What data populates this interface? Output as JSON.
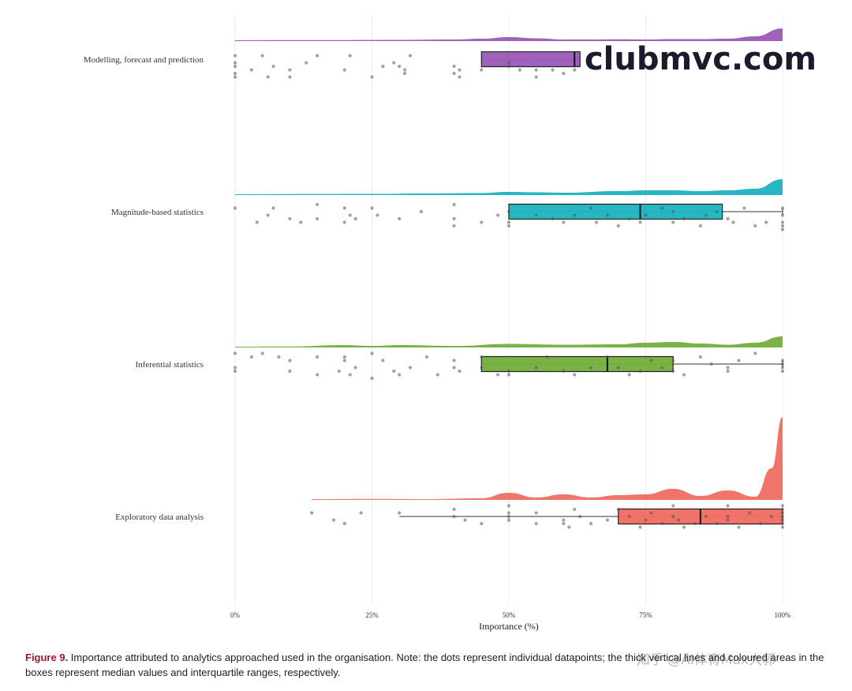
{
  "chart_data": {
    "type": "raincloud",
    "xlabel": "Importance (%)",
    "xlim": [
      0,
      100
    ],
    "xticks": [
      0,
      25,
      50,
      75,
      100
    ],
    "xtick_labels": [
      "0%",
      "25%",
      "50%",
      "75%",
      "100%"
    ],
    "grid": "vertical",
    "series": [
      {
        "name": "Modelling, forecast and prediction",
        "color": "#9b59b6",
        "q1": 45,
        "median": 62,
        "q3": 63,
        "whisker_low": 45,
        "whisker_high": 63,
        "density": [
          [
            0,
            1
          ],
          [
            10,
            1.2
          ],
          [
            20,
            1.3
          ],
          [
            30,
            1.5
          ],
          [
            40,
            2
          ],
          [
            45,
            3
          ],
          [
            50,
            5
          ],
          [
            55,
            3.5
          ],
          [
            60,
            2
          ],
          [
            65,
            2
          ],
          [
            70,
            2.2
          ],
          [
            75,
            2
          ],
          [
            80,
            2.5
          ],
          [
            85,
            2.5
          ],
          [
            90,
            3
          ],
          [
            95,
            6
          ],
          [
            100,
            16
          ]
        ],
        "points": [
          [
            0,
            -1
          ],
          [
            0,
            1
          ],
          [
            0,
            2
          ],
          [
            0,
            4
          ],
          [
            0,
            5
          ],
          [
            3,
            3
          ],
          [
            5,
            -1
          ],
          [
            6,
            5
          ],
          [
            7,
            2
          ],
          [
            10,
            3
          ],
          [
            10,
            5
          ],
          [
            13,
            1
          ],
          [
            15,
            -1
          ],
          [
            20,
            3
          ],
          [
            21,
            -1
          ],
          [
            25,
            5
          ],
          [
            27,
            2
          ],
          [
            29,
            1
          ],
          [
            30,
            2
          ],
          [
            31,
            3
          ],
          [
            31,
            4
          ],
          [
            32,
            -1
          ],
          [
            40,
            2
          ],
          [
            40,
            4
          ],
          [
            41,
            3
          ],
          [
            41,
            5
          ],
          [
            45,
            3
          ],
          [
            50,
            1
          ],
          [
            50,
            2
          ],
          [
            52,
            3
          ],
          [
            55,
            3
          ],
          [
            55,
            5
          ],
          [
            58,
            3
          ],
          [
            60,
            4
          ],
          [
            62,
            3
          ]
        ]
      },
      {
        "name": "Magnitude-based statistics",
        "color": "#1ab3c0",
        "q1": 50,
        "median": 74,
        "q3": 89,
        "whisker_low": 50,
        "whisker_high": 100,
        "density": [
          [
            0,
            1
          ],
          [
            15,
            1.4
          ],
          [
            25,
            1.5
          ],
          [
            35,
            2
          ],
          [
            45,
            2.5
          ],
          [
            50,
            4
          ],
          [
            55,
            3.5
          ],
          [
            60,
            3
          ],
          [
            70,
            5
          ],
          [
            75,
            6
          ],
          [
            80,
            6
          ],
          [
            85,
            5
          ],
          [
            90,
            6
          ],
          [
            95,
            8
          ],
          [
            100,
            20
          ]
        ],
        "points": [
          [
            0,
            -1
          ],
          [
            4,
            3
          ],
          [
            6,
            1
          ],
          [
            7,
            -1
          ],
          [
            10,
            2
          ],
          [
            12,
            3
          ],
          [
            15,
            -2
          ],
          [
            15,
            2
          ],
          [
            20,
            3
          ],
          [
            20,
            -1
          ],
          [
            21,
            1
          ],
          [
            22,
            2
          ],
          [
            25,
            -1
          ],
          [
            26,
            1
          ],
          [
            30,
            2
          ],
          [
            34,
            0
          ],
          [
            40,
            2
          ],
          [
            40,
            4
          ],
          [
            40,
            -2
          ],
          [
            45,
            3
          ],
          [
            48,
            1
          ],
          [
            50,
            3
          ],
          [
            50,
            4
          ],
          [
            50,
            0
          ],
          [
            55,
            1
          ],
          [
            58,
            2
          ],
          [
            60,
            3
          ],
          [
            62,
            1
          ],
          [
            65,
            -1
          ],
          [
            66,
            3
          ],
          [
            68,
            1
          ],
          [
            70,
            4
          ],
          [
            72,
            2
          ],
          [
            74,
            3
          ],
          [
            75,
            1
          ],
          [
            78,
            -1
          ],
          [
            80,
            3
          ],
          [
            80,
            0
          ],
          [
            82,
            2
          ],
          [
            85,
            4
          ],
          [
            86,
            1
          ],
          [
            88,
            0
          ],
          [
            90,
            2
          ],
          [
            91,
            3
          ],
          [
            93,
            -1
          ],
          [
            95,
            4
          ],
          [
            97,
            3
          ],
          [
            100,
            -1
          ],
          [
            100,
            1
          ],
          [
            100,
            3
          ],
          [
            100,
            4
          ],
          [
            100,
            5
          ]
        ]
      },
      {
        "name": "Inferential statistics",
        "color": "#74ae3b",
        "q1": 45,
        "median": 68,
        "q3": 80,
        "whisker_low": 45,
        "whisker_high": 100,
        "density": [
          [
            0,
            1
          ],
          [
            10,
            1.3
          ],
          [
            20,
            3
          ],
          [
            25,
            2
          ],
          [
            30,
            3
          ],
          [
            40,
            2
          ],
          [
            50,
            4.5
          ],
          [
            60,
            3.5
          ],
          [
            70,
            4
          ],
          [
            75,
            6
          ],
          [
            80,
            7
          ],
          [
            85,
            5
          ],
          [
            90,
            3.5
          ],
          [
            95,
            6
          ],
          [
            100,
            14
          ]
        ],
        "points": [
          [
            0,
            -3
          ],
          [
            0,
            1
          ],
          [
            0,
            2
          ],
          [
            3,
            -2
          ],
          [
            5,
            -3
          ],
          [
            8,
            -2
          ],
          [
            10,
            -1
          ],
          [
            10,
            2
          ],
          [
            15,
            -2
          ],
          [
            15,
            3
          ],
          [
            19,
            2
          ],
          [
            20,
            -2
          ],
          [
            20,
            -1
          ],
          [
            21,
            3
          ],
          [
            22,
            1
          ],
          [
            25,
            4
          ],
          [
            25,
            -3
          ],
          [
            27,
            -1
          ],
          [
            29,
            2
          ],
          [
            30,
            3
          ],
          [
            32,
            1
          ],
          [
            35,
            -2
          ],
          [
            37,
            3
          ],
          [
            40,
            -1
          ],
          [
            40,
            1
          ],
          [
            41,
            2
          ],
          [
            45,
            1
          ],
          [
            45,
            -2
          ],
          [
            48,
            3
          ],
          [
            50,
            2
          ],
          [
            50,
            3
          ],
          [
            55,
            1
          ],
          [
            57,
            -2
          ],
          [
            60,
            2
          ],
          [
            62,
            3
          ],
          [
            65,
            1
          ],
          [
            68,
            -2
          ],
          [
            70,
            1
          ],
          [
            72,
            3
          ],
          [
            74,
            2
          ],
          [
            76,
            -1
          ],
          [
            78,
            1
          ],
          [
            80,
            2
          ],
          [
            80,
            -1
          ],
          [
            82,
            3
          ],
          [
            85,
            -2
          ],
          [
            87,
            0
          ],
          [
            90,
            1
          ],
          [
            90,
            2
          ],
          [
            92,
            -1
          ],
          [
            95,
            -3
          ],
          [
            100,
            -1
          ],
          [
            100,
            0
          ],
          [
            100,
            1
          ],
          [
            100,
            2
          ]
        ]
      },
      {
        "name": "Exploratory data analysis",
        "color": "#f06b61",
        "q1": 70,
        "median": 85,
        "q3": 100,
        "whisker_low": 30,
        "whisker_high": 100,
        "density": [
          [
            14,
            1
          ],
          [
            25,
            1.3
          ],
          [
            35,
            1
          ],
          [
            45,
            2
          ],
          [
            50,
            9
          ],
          [
            55,
            3
          ],
          [
            60,
            7
          ],
          [
            65,
            3
          ],
          [
            70,
            6
          ],
          [
            75,
            7
          ],
          [
            80,
            14
          ],
          [
            85,
            5
          ],
          [
            90,
            12
          ],
          [
            95,
            4
          ],
          [
            98,
            40
          ],
          [
            100,
            105
          ]
        ],
        "points": [
          [
            14,
            -1
          ],
          [
            18,
            1
          ],
          [
            20,
            2
          ],
          [
            23,
            -1
          ],
          [
            30,
            -1
          ],
          [
            40,
            -2
          ],
          [
            40,
            0
          ],
          [
            42,
            1
          ],
          [
            45,
            2
          ],
          [
            50,
            -3
          ],
          [
            50,
            -1
          ],
          [
            50,
            0
          ],
          [
            50,
            1
          ],
          [
            55,
            -1
          ],
          [
            55,
            2
          ],
          [
            60,
            1
          ],
          [
            60,
            2
          ],
          [
            61,
            3
          ],
          [
            62,
            -2
          ],
          [
            63,
            0
          ],
          [
            65,
            2
          ],
          [
            68,
            1
          ],
          [
            70,
            -2
          ],
          [
            72,
            0
          ],
          [
            74,
            3
          ],
          [
            75,
            1
          ],
          [
            76,
            -1
          ],
          [
            78,
            2
          ],
          [
            80,
            -3
          ],
          [
            80,
            0
          ],
          [
            81,
            1
          ],
          [
            82,
            3
          ],
          [
            84,
            2
          ],
          [
            85,
            -1
          ],
          [
            86,
            0
          ],
          [
            88,
            2
          ],
          [
            90,
            -3
          ],
          [
            90,
            0
          ],
          [
            90,
            1
          ],
          [
            92,
            3
          ],
          [
            94,
            -1
          ],
          [
            96,
            2
          ],
          [
            98,
            0
          ],
          [
            100,
            -3
          ],
          [
            100,
            -2
          ],
          [
            100,
            -1
          ],
          [
            100,
            0
          ],
          [
            100,
            1
          ],
          [
            100,
            2
          ],
          [
            100,
            3
          ]
        ]
      }
    ]
  },
  "watermark": {
    "site": "clubmvc.com",
    "overlay": "知乎 @AI体育Max大郭"
  },
  "caption": {
    "label": "Figure 9.",
    "text": " Importance attributed to analytics approached used in the organisation. Note: the dots represent individual datapoints; the thick vertical lines and coloured areas in the boxes represent median values and interquartile ranges, respectively."
  }
}
